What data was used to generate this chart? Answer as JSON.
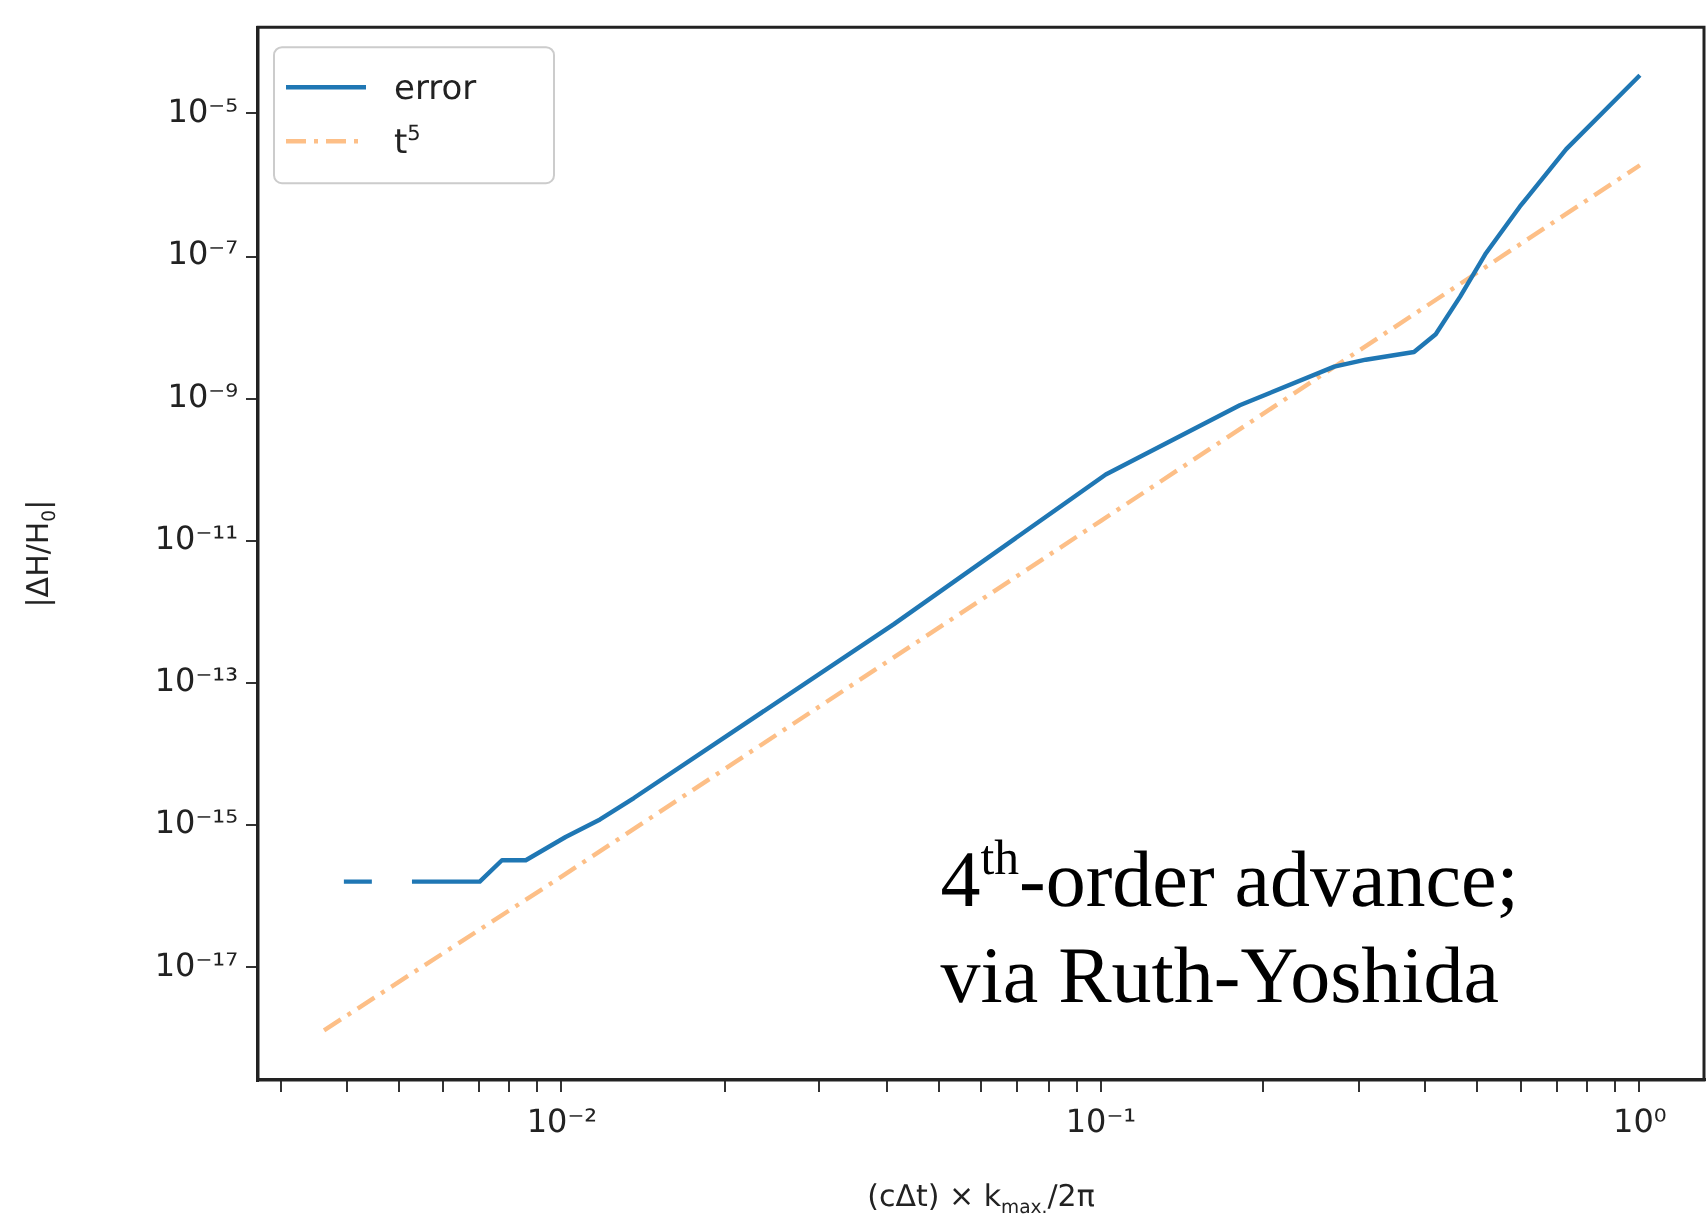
{
  "chart_data": {
    "type": "line",
    "xlabel": "(cΔt) × k$_{max.}$/2π",
    "ylabel": "|ΔH/H$_{0}$|",
    "log": "xy",
    "grid": false,
    "legend": "top left",
    "marker": "none",
    "xlim": [
      0.00273,
      1.315
    ],
    "ylim": [
      2.6e-19,
      0.000166
    ],
    "xticks": [
      {
        "value": 0.003,
        "label": null
      },
      {
        "value": 0.004,
        "label": null
      },
      {
        "value": 0.005,
        "label": null
      },
      {
        "value": 0.006,
        "label": null
      },
      {
        "value": 0.007,
        "label": null
      },
      {
        "value": 0.008,
        "label": null
      },
      {
        "value": 0.009,
        "label": null
      },
      {
        "value": 0.01,
        "label": "10⁻²"
      },
      {
        "value": 0.02,
        "label": null
      },
      {
        "value": 0.03,
        "label": null
      },
      {
        "value": 0.04,
        "label": null
      },
      {
        "value": 0.05,
        "label": null
      },
      {
        "value": 0.06,
        "label": null
      },
      {
        "value": 0.07,
        "label": null
      },
      {
        "value": 0.08,
        "label": null
      },
      {
        "value": 0.09,
        "label": null
      },
      {
        "value": 0.1,
        "label": "10⁻¹"
      },
      {
        "value": 0.2,
        "label": null
      },
      {
        "value": 0.3,
        "label": null
      },
      {
        "value": 0.4,
        "label": null
      },
      {
        "value": 0.5,
        "label": null
      },
      {
        "value": 0.6,
        "label": null
      },
      {
        "value": 0.7,
        "label": null
      },
      {
        "value": 0.8,
        "label": null
      },
      {
        "value": 0.9,
        "label": null
      },
      {
        "value": 1,
        "label": "10⁰"
      }
    ],
    "yticks": [
      {
        "value": 1e-17,
        "label": "10⁻¹⁷"
      },
      {
        "value": 1e-15,
        "label": "10⁻¹⁵"
      },
      {
        "value": 1e-13,
        "label": "10⁻¹³"
      },
      {
        "value": 1e-11,
        "label": "10⁻¹¹"
      },
      {
        "value": 1e-09,
        "label": "10⁻⁹"
      },
      {
        "value": 1e-07,
        "label": "10⁻⁷"
      },
      {
        "value": 1e-05,
        "label": "10⁻⁵"
      }
    ],
    "series": [
      {
        "name": "error",
        "color": "#1f77b4",
        "line_style": "solid",
        "x": [
          0.00394,
          0.00444,
          0.00484,
          0.00527,
          0.00704,
          0.00774,
          0.00857,
          0.01016,
          0.01177,
          0.0136,
          0.0413,
          0.1021,
          0.181,
          0.271,
          0.31,
          0.381,
          0.418,
          0.464,
          0.518,
          0.599,
          0.73,
          1
        ],
        "values": [
          1.6e-16,
          1.6e-16,
          null,
          1.6e-16,
          1.6e-16,
          3.2e-16,
          3.2e-16,
          6.8e-16,
          1.2e-15,
          2.4e-15,
          6.7e-13,
          8.5e-11,
          8e-10,
          2.8e-09,
          3.5e-09,
          4.5e-09,
          8e-09,
          2.7e-08,
          1.1e-07,
          5e-07,
          3.2e-06,
          3.5e-05
        ]
      },
      {
        "name": "t$^{5}$",
        "color": "#fdbf87",
        "line_style": "dashdot",
        "x": [
          0.00362,
          0.01,
          0.1,
          1
        ],
        "values": [
          1.3e-18,
          1.9e-16,
          1.9e-11,
          1.9e-06
        ]
      }
    ],
    "annotations": [
      "4$^{th}$-order advance;\nvia Ruth-Yoshida"
    ]
  }
}
